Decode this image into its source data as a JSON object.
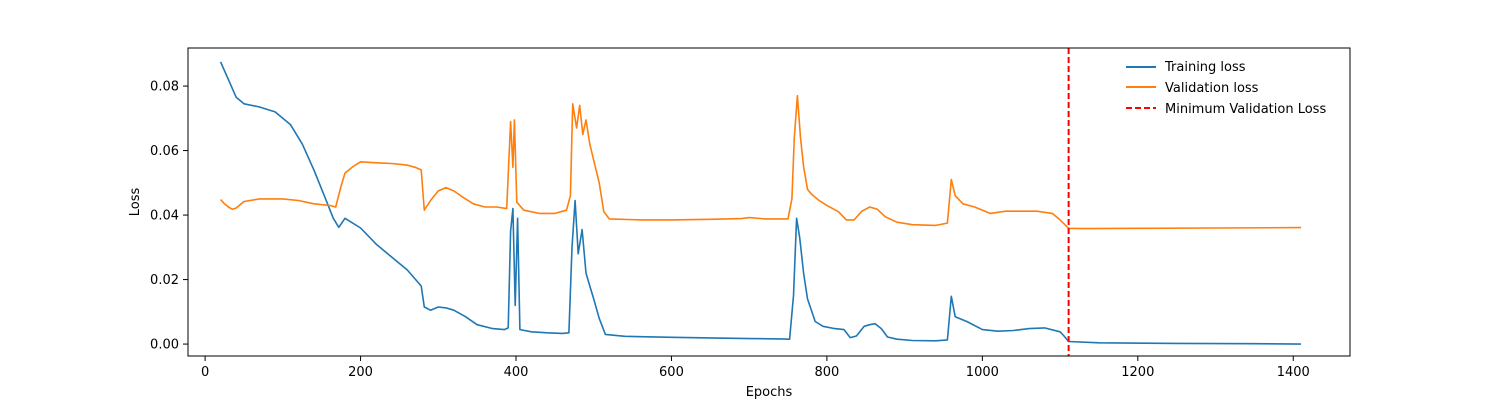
{
  "chart_data": {
    "type": "line",
    "title": "",
    "xlabel": "Epochs",
    "ylabel": "Loss",
    "xlim": [
      -22,
      1473
    ],
    "ylim": [
      -0.0037,
      0.0918
    ],
    "x_ticks": [
      0,
      200,
      400,
      600,
      800,
      1000,
      1200,
      1400
    ],
    "y_ticks": [
      0.0,
      0.02,
      0.04,
      0.06,
      0.08
    ],
    "x_tick_labels": [
      "0",
      "200",
      "400",
      "600",
      "800",
      "1000",
      "1200",
      "1400"
    ],
    "y_tick_labels": [
      "0.00",
      "0.02",
      "0.04",
      "0.06",
      "0.08"
    ],
    "grid": false,
    "legend_position": "top-right",
    "colors": {
      "training": "#1f77b4",
      "validation": "#ff7f0e",
      "minimum": "#ff0000"
    },
    "legend": [
      "Training loss",
      "Validation loss",
      "Minimum Validation Loss"
    ],
    "min_validation_epoch": 1111,
    "series": [
      {
        "name": "Training loss",
        "color": "#1f77b4",
        "points": [
          [
            20,
            0.0875
          ],
          [
            30,
            0.082
          ],
          [
            40,
            0.0765
          ],
          [
            50,
            0.0745
          ],
          [
            70,
            0.0735
          ],
          [
            90,
            0.072
          ],
          [
            110,
            0.068
          ],
          [
            125,
            0.062
          ],
          [
            140,
            0.054
          ],
          [
            155,
            0.045
          ],
          [
            165,
            0.039
          ],
          [
            172,
            0.0362
          ],
          [
            180,
            0.039
          ],
          [
            200,
            0.036
          ],
          [
            220,
            0.031
          ],
          [
            240,
            0.027
          ],
          [
            260,
            0.023
          ],
          [
            278,
            0.018
          ],
          [
            282,
            0.0115
          ],
          [
            290,
            0.0105
          ],
          [
            300,
            0.0115
          ],
          [
            310,
            0.0112
          ],
          [
            320,
            0.0105
          ],
          [
            335,
            0.0085
          ],
          [
            350,
            0.006
          ],
          [
            370,
            0.0048
          ],
          [
            385,
            0.0045
          ],
          [
            390,
            0.005
          ],
          [
            393,
            0.035
          ],
          [
            396,
            0.042
          ],
          [
            399,
            0.012
          ],
          [
            402,
            0.039
          ],
          [
            405,
            0.0045
          ],
          [
            420,
            0.0038
          ],
          [
            440,
            0.0035
          ],
          [
            460,
            0.0033
          ],
          [
            468,
            0.0035
          ],
          [
            472,
            0.03
          ],
          [
            476,
            0.0445
          ],
          [
            480,
            0.028
          ],
          [
            485,
            0.0355
          ],
          [
            490,
            0.022
          ],
          [
            495,
            0.018
          ],
          [
            500,
            0.014
          ],
          [
            507,
            0.008
          ],
          [
            515,
            0.003
          ],
          [
            540,
            0.0024
          ],
          [
            600,
            0.0021
          ],
          [
            650,
            0.0019
          ],
          [
            700,
            0.0017
          ],
          [
            740,
            0.0016
          ],
          [
            752,
            0.0015
          ],
          [
            757,
            0.015
          ],
          [
            761,
            0.039
          ],
          [
            765,
            0.033
          ],
          [
            770,
            0.022
          ],
          [
            775,
            0.014
          ],
          [
            785,
            0.007
          ],
          [
            795,
            0.0055
          ],
          [
            810,
            0.0048
          ],
          [
            822,
            0.0045
          ],
          [
            830,
            0.002
          ],
          [
            838,
            0.0025
          ],
          [
            848,
            0.0055
          ],
          [
            855,
            0.006
          ],
          [
            862,
            0.0063
          ],
          [
            870,
            0.0048
          ],
          [
            878,
            0.0022
          ],
          [
            890,
            0.0015
          ],
          [
            910,
            0.0011
          ],
          [
            940,
            0.001
          ],
          [
            955,
            0.0013
          ],
          [
            960,
            0.0148
          ],
          [
            965,
            0.0085
          ],
          [
            980,
            0.007
          ],
          [
            1000,
            0.0045
          ],
          [
            1020,
            0.004
          ],
          [
            1040,
            0.0042
          ],
          [
            1060,
            0.0048
          ],
          [
            1080,
            0.005
          ],
          [
            1100,
            0.0038
          ],
          [
            1105,
            0.0025
          ],
          [
            1111,
            0.0008
          ],
          [
            1150,
            0.0004
          ],
          [
            1250,
            0.0002
          ],
          [
            1350,
            0.0001
          ],
          [
            1410,
            0.0
          ]
        ]
      },
      {
        "name": "Validation loss",
        "color": "#ff7f0e",
        "points": [
          [
            20,
            0.0448
          ],
          [
            25,
            0.0435
          ],
          [
            30,
            0.0425
          ],
          [
            35,
            0.0418
          ],
          [
            40,
            0.0422
          ],
          [
            50,
            0.0442
          ],
          [
            70,
            0.045
          ],
          [
            100,
            0.045
          ],
          [
            120,
            0.0445
          ],
          [
            140,
            0.0435
          ],
          [
            160,
            0.043
          ],
          [
            168,
            0.0425
          ],
          [
            175,
            0.049
          ],
          [
            180,
            0.053
          ],
          [
            190,
            0.055
          ],
          [
            200,
            0.0565
          ],
          [
            220,
            0.0562
          ],
          [
            240,
            0.056
          ],
          [
            260,
            0.0555
          ],
          [
            270,
            0.0548
          ],
          [
            278,
            0.054
          ],
          [
            282,
            0.0415
          ],
          [
            290,
            0.0445
          ],
          [
            300,
            0.0475
          ],
          [
            310,
            0.0485
          ],
          [
            320,
            0.0475
          ],
          [
            330,
            0.0458
          ],
          [
            345,
            0.0435
          ],
          [
            360,
            0.0425
          ],
          [
            375,
            0.0425
          ],
          [
            388,
            0.042
          ],
          [
            393,
            0.069
          ],
          [
            396,
            0.0548
          ],
          [
            398,
            0.0695
          ],
          [
            401,
            0.044
          ],
          [
            410,
            0.0415
          ],
          [
            430,
            0.0405
          ],
          [
            450,
            0.0405
          ],
          [
            465,
            0.0415
          ],
          [
            470,
            0.046
          ],
          [
            473,
            0.0745
          ],
          [
            478,
            0.067
          ],
          [
            482,
            0.074
          ],
          [
            486,
            0.065
          ],
          [
            490,
            0.0695
          ],
          [
            495,
            0.062
          ],
          [
            500,
            0.057
          ],
          [
            507,
            0.05
          ],
          [
            513,
            0.041
          ],
          [
            520,
            0.0388
          ],
          [
            560,
            0.0385
          ],
          [
            600,
            0.0385
          ],
          [
            650,
            0.0387
          ],
          [
            690,
            0.0389
          ],
          [
            700,
            0.0392
          ],
          [
            720,
            0.0388
          ],
          [
            750,
            0.0388
          ],
          [
            755,
            0.045
          ],
          [
            758,
            0.064
          ],
          [
            762,
            0.077
          ],
          [
            766,
            0.064
          ],
          [
            770,
            0.055
          ],
          [
            775,
            0.048
          ],
          [
            780,
            0.0465
          ],
          [
            790,
            0.0445
          ],
          [
            800,
            0.043
          ],
          [
            815,
            0.041
          ],
          [
            825,
            0.0385
          ],
          [
            835,
            0.0385
          ],
          [
            845,
            0.0412
          ],
          [
            855,
            0.0425
          ],
          [
            865,
            0.0418
          ],
          [
            875,
            0.0395
          ],
          [
            890,
            0.0378
          ],
          [
            910,
            0.037
          ],
          [
            940,
            0.0368
          ],
          [
            955,
            0.0375
          ],
          [
            960,
            0.051
          ],
          [
            965,
            0.046
          ],
          [
            975,
            0.0435
          ],
          [
            990,
            0.0425
          ],
          [
            1010,
            0.0405
          ],
          [
            1030,
            0.0412
          ],
          [
            1050,
            0.0412
          ],
          [
            1070,
            0.0412
          ],
          [
            1090,
            0.0405
          ],
          [
            1100,
            0.0385
          ],
          [
            1111,
            0.0359
          ],
          [
            1130,
            0.0358
          ],
          [
            1200,
            0.0359
          ],
          [
            1300,
            0.036
          ],
          [
            1410,
            0.0361
          ]
        ]
      }
    ]
  }
}
